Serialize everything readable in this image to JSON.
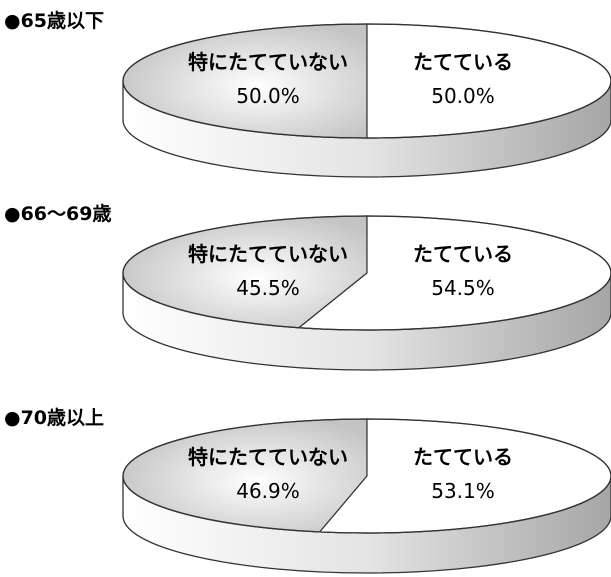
{
  "chart_data": [
    {
      "type": "pie",
      "title": "●65歳以下",
      "slices": [
        {
          "label": "特にたてていない",
          "value": 50.0,
          "display": "50.0%",
          "color": "#d6d6d6"
        },
        {
          "label": "たてている",
          "value": 50.0,
          "display": "50.0%",
          "color": "#ffffff"
        }
      ]
    },
    {
      "type": "pie",
      "title": "●66〜69歳",
      "slices": [
        {
          "label": "特にたてていない",
          "value": 45.5,
          "display": "45.5%",
          "color": "#d6d6d6"
        },
        {
          "label": "たてている",
          "value": 54.5,
          "display": "54.5%",
          "color": "#ffffff"
        }
      ]
    },
    {
      "type": "pie",
      "title": "●70歳以上",
      "slices": [
        {
          "label": "特にたてていない",
          "value": 46.9,
          "display": "46.9%",
          "color": "#d6d6d6"
        },
        {
          "label": "たてている",
          "value": 53.1,
          "display": "53.1%",
          "color": "#ffffff"
        }
      ]
    }
  ]
}
